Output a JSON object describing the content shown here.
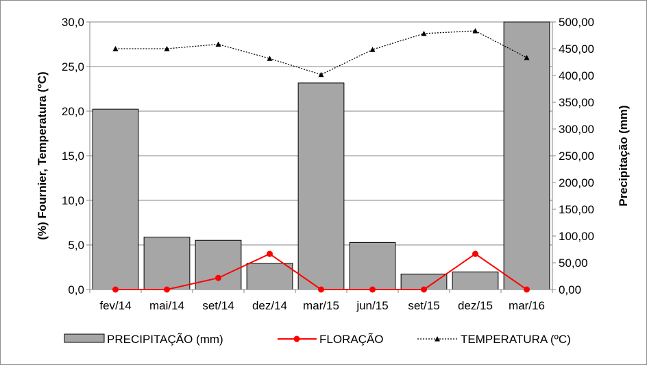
{
  "chart_data": {
    "type": "bar",
    "categories": [
      "fev/14",
      "mai/14",
      "set/14",
      "dez/14",
      "mar/15",
      "jun/15",
      "set/15",
      "dez/15",
      "mar/16"
    ],
    "series": [
      {
        "name": "PRECIPITAÇÃO (mm)",
        "type": "bar",
        "axis": "right",
        "color": "#a6a6a6",
        "values": [
          337,
          98,
          92,
          49,
          386,
          88,
          29,
          33,
          500
        ]
      },
      {
        "name": "FLORAÇÃO",
        "type": "line",
        "axis": "left",
        "color": "#ff0000",
        "values": [
          0,
          0,
          1.3,
          4.0,
          0,
          0,
          0,
          4.0,
          0
        ]
      },
      {
        "name": "TEMPERATURA (ºC)",
        "type": "line",
        "axis": "left",
        "color": "#000000",
        "values": [
          27.0,
          27.0,
          27.5,
          25.9,
          24.1,
          26.9,
          28.7,
          29.0,
          26.0
        ]
      }
    ],
    "ylabel": "(%) Fournier, Temperatura (°C)",
    "y2label": "Precipitação (mm)",
    "ylim": [
      0,
      30
    ],
    "y2lim": [
      0,
      500
    ],
    "yticks": [
      "0,0",
      "5,0",
      "10,0",
      "15,0",
      "20,0",
      "25,0",
      "30,0"
    ],
    "y2ticks": [
      "0,00",
      "50,00",
      "100,00",
      "150,00",
      "200,00",
      "250,00",
      "300,00",
      "350,00",
      "400,00",
      "450,00",
      "500,00"
    ],
    "grid": true,
    "legend_position": "bottom"
  }
}
